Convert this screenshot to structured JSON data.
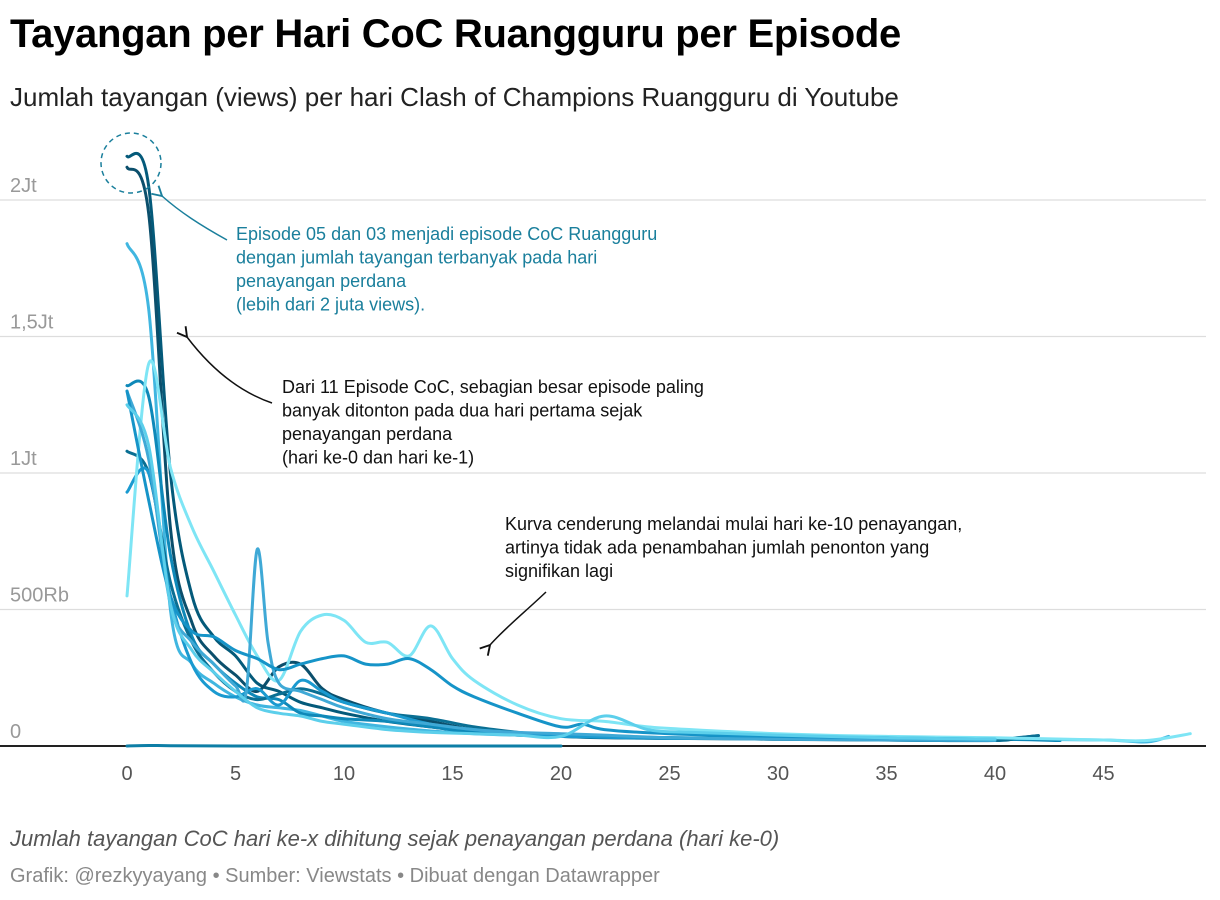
{
  "title": "Tayangan per Hari CoC Ruangguru per Episode",
  "subtitle": "Jumlah tayangan (views) per hari Clash of Champions Ruangguru di Youtube",
  "footnote": "Jumlah tayangan CoC hari ke-x dihitung sejak penayangan perdana (hari ke-0)",
  "credit": "Grafik: @rezkyyayang • Sumber: Viewstats • Dibuat dengan Datawrapper",
  "colors": {
    "grid": "#dddddd",
    "axis": "#222222",
    "annot_blue": "#1a7f9c",
    "annot_dark": "#111111"
  },
  "annotations": [
    {
      "id": "a1",
      "color": "#1a7f9c",
      "lines": [
        "Episode 05 dan 03 menjadi episode CoC Ruangguru",
        "dengan jumlah tayangan terbanyak pada hari",
        "penayangan perdana",
        "(lebih dari 2 juta views)."
      ]
    },
    {
      "id": "a2",
      "color": "#111111",
      "lines": [
        "Dari 11 Episode CoC, sebagian besar episode paling",
        "banyak ditonton pada dua hari pertama sejak",
        "penayangan perdana",
        "(hari ke-0 dan hari ke-1)"
      ]
    },
    {
      "id": "a3",
      "color": "#111111",
      "lines": [
        "Kurva cenderung melandai mulai hari ke-10 penayangan,",
        "artinya tidak ada penambahan jumlah penonton yang",
        "signifikan lagi"
      ]
    }
  ],
  "chart_data": {
    "type": "line",
    "title": "Tayangan per Hari CoC Ruangguru per Episode",
    "subtitle": "Jumlah tayangan (views) per hari Clash of Champions Ruangguru di Youtube",
    "xlabel": "",
    "ylabel": "",
    "xlim": [
      0,
      49
    ],
    "ylim": [
      0,
      2000000
    ],
    "xticks": [
      0,
      5,
      10,
      15,
      20,
      25,
      30,
      35,
      40,
      45
    ],
    "xtick_labels": [
      "0",
      "5",
      "10",
      "15",
      "20",
      "25",
      "30",
      "35",
      "40",
      "45"
    ],
    "yticks": [
      0,
      500000,
      1000000,
      1500000,
      2000000
    ],
    "ytick_labels": [
      "0",
      "500Rb",
      "1Jt",
      "1,5Jt",
      "2Jt"
    ],
    "grid": true,
    "series": [
      {
        "color": "#045a7a",
        "points": [
          [
            0,
            2160000
          ],
          [
            1,
            2050000
          ],
          [
            2,
            1000000
          ],
          [
            3,
            550000
          ],
          [
            4,
            400000
          ],
          [
            5,
            330000
          ],
          [
            6,
            230000
          ],
          [
            7,
            200000
          ],
          [
            8,
            160000
          ],
          [
            9,
            140000
          ],
          [
            10,
            120000
          ],
          [
            12,
            90000
          ],
          [
            14,
            70000
          ],
          [
            16,
            50000
          ],
          [
            18,
            40000
          ],
          [
            20,
            35000
          ],
          [
            22,
            30000
          ],
          [
            25,
            28000
          ],
          [
            28,
            27000
          ],
          [
            30,
            24000
          ],
          [
            33,
            23000
          ],
          [
            36,
            21000
          ],
          [
            38,
            20000
          ],
          [
            40,
            22000
          ],
          [
            42,
            38000
          ]
        ]
      },
      {
        "color": "#0b4f6c",
        "points": [
          [
            0,
            2120000
          ],
          [
            1,
            1950000
          ],
          [
            2,
            800000
          ],
          [
            3,
            450000
          ],
          [
            4,
            330000
          ],
          [
            5,
            260000
          ],
          [
            6,
            200000
          ],
          [
            7,
            290000
          ],
          [
            8,
            300000
          ],
          [
            9,
            210000
          ],
          [
            10,
            170000
          ],
          [
            12,
            120000
          ],
          [
            14,
            90000
          ],
          [
            16,
            60000
          ],
          [
            18,
            45000
          ],
          [
            20,
            40000
          ],
          [
            25,
            30000
          ],
          [
            28,
            30000
          ],
          [
            30,
            26000
          ],
          [
            35,
            25000
          ],
          [
            40,
            22000
          ]
        ]
      },
      {
        "color": "#40b6e0",
        "points": [
          [
            0,
            1840000
          ],
          [
            1,
            1600000
          ],
          [
            2,
            500000
          ],
          [
            3,
            300000
          ],
          [
            4,
            230000
          ],
          [
            5,
            180000
          ],
          [
            6,
            150000
          ],
          [
            7,
            140000
          ],
          [
            8,
            130000
          ],
          [
            9,
            110000
          ],
          [
            10,
            90000
          ],
          [
            12,
            70000
          ],
          [
            14,
            55000
          ],
          [
            16,
            45000
          ],
          [
            18,
            40000
          ],
          [
            20,
            38000
          ],
          [
            25,
            30000
          ],
          [
            30,
            28000
          ],
          [
            35,
            25000
          ],
          [
            40,
            25000
          ],
          [
            45,
            22000
          ],
          [
            47,
            15000
          ],
          [
            48,
            35000
          ]
        ]
      },
      {
        "color": "#0e88b8",
        "points": [
          [
            0,
            1320000
          ],
          [
            1,
            1280000
          ],
          [
            2,
            700000
          ],
          [
            3,
            400000
          ],
          [
            4,
            300000
          ],
          [
            5,
            230000
          ],
          [
            6,
            180000
          ],
          [
            7,
            170000
          ],
          [
            8,
            120000
          ],
          [
            9,
            110000
          ],
          [
            10,
            100000
          ],
          [
            12,
            90000
          ],
          [
            14,
            70000
          ],
          [
            16,
            50000
          ],
          [
            18,
            40000
          ],
          [
            20,
            35000
          ],
          [
            25,
            30000
          ],
          [
            30,
            28000
          ],
          [
            35,
            27000
          ],
          [
            40,
            25000
          ],
          [
            43,
            20000
          ]
        ]
      },
      {
        "color": "#0a6f93",
        "points": [
          [
            0,
            1080000
          ],
          [
            1,
            1000000
          ],
          [
            2,
            600000
          ],
          [
            3,
            380000
          ],
          [
            4,
            270000
          ],
          [
            5,
            200000
          ],
          [
            6,
            170000
          ],
          [
            7,
            190000
          ],
          [
            8,
            210000
          ],
          [
            9,
            190000
          ],
          [
            10,
            160000
          ],
          [
            12,
            120000
          ],
          [
            14,
            100000
          ],
          [
            16,
            70000
          ],
          [
            18,
            50000
          ],
          [
            20,
            35000
          ],
          [
            25,
            28000
          ],
          [
            30,
            26000
          ],
          [
            35,
            22000
          ],
          [
            40,
            20000
          ],
          [
            41,
            30000
          ],
          [
            42,
            38000
          ]
        ]
      },
      {
        "color": "#1a9ad0",
        "points": [
          [
            0,
            930000
          ],
          [
            1,
            1000000
          ],
          [
            2,
            550000
          ],
          [
            3,
            300000
          ],
          [
            4,
            200000
          ],
          [
            5,
            180000
          ],
          [
            6,
            210000
          ],
          [
            7,
            150000
          ],
          [
            8,
            240000
          ],
          [
            9,
            200000
          ],
          [
            10,
            160000
          ],
          [
            12,
            120000
          ],
          [
            14,
            80000
          ],
          [
            16,
            60000
          ],
          [
            18,
            45000
          ],
          [
            20,
            35000
          ],
          [
            25,
            28000
          ],
          [
            30,
            28000
          ],
          [
            35,
            25000
          ],
          [
            40,
            22000
          ]
        ]
      },
      {
        "color": "#7ee5f5",
        "points": [
          [
            0,
            550000
          ],
          [
            1,
            1400000
          ],
          [
            2,
            1020000
          ],
          [
            3,
            800000
          ],
          [
            4,
            640000
          ],
          [
            5,
            480000
          ],
          [
            6,
            330000
          ],
          [
            7,
            240000
          ],
          [
            8,
            420000
          ],
          [
            9,
            480000
          ],
          [
            10,
            460000
          ],
          [
            11,
            380000
          ],
          [
            12,
            380000
          ],
          [
            13,
            330000
          ],
          [
            14,
            440000
          ],
          [
            15,
            320000
          ],
          [
            16,
            240000
          ],
          [
            18,
            150000
          ],
          [
            20,
            100000
          ],
          [
            22,
            90000
          ],
          [
            24,
            70000
          ],
          [
            26,
            60000
          ],
          [
            30,
            45000
          ],
          [
            35,
            35000
          ],
          [
            40,
            30000
          ],
          [
            45,
            22000
          ],
          [
            47,
            20000
          ],
          [
            49,
            45000
          ]
        ]
      },
      {
        "color": "#3fa9d6",
        "points": [
          [
            0,
            1300000
          ],
          [
            1,
            1050000
          ],
          [
            2,
            520000
          ],
          [
            3,
            380000
          ],
          [
            4,
            300000
          ],
          [
            5,
            220000
          ],
          [
            5.5,
            200000
          ],
          [
            6,
            720000
          ],
          [
            6.5,
            380000
          ],
          [
            7,
            230000
          ],
          [
            8,
            200000
          ],
          [
            9,
            170000
          ],
          [
            10,
            140000
          ],
          [
            12,
            100000
          ],
          [
            14,
            80000
          ],
          [
            16,
            60000
          ],
          [
            18,
            50000
          ],
          [
            20,
            45000
          ],
          [
            22,
            40000
          ],
          [
            25,
            30000
          ],
          [
            30,
            25000
          ],
          [
            35,
            22000
          ],
          [
            40,
            20000
          ]
        ]
      },
      {
        "color": "#1694c8",
        "points": [
          [
            0,
            1300000
          ],
          [
            1,
            900000
          ],
          [
            2,
            550000
          ],
          [
            3,
            420000
          ],
          [
            4,
            400000
          ],
          [
            5,
            350000
          ],
          [
            6,
            320000
          ],
          [
            7,
            280000
          ],
          [
            8,
            300000
          ],
          [
            9,
            320000
          ],
          [
            10,
            330000
          ],
          [
            11,
            300000
          ],
          [
            12,
            300000
          ],
          [
            13,
            320000
          ],
          [
            14,
            280000
          ],
          [
            15,
            220000
          ],
          [
            16,
            180000
          ],
          [
            18,
            120000
          ],
          [
            20,
            70000
          ],
          [
            21,
            80000
          ],
          [
            22,
            60000
          ],
          [
            25,
            45000
          ],
          [
            30,
            35000
          ],
          [
            35,
            30000
          ],
          [
            40,
            25000
          ]
        ]
      },
      {
        "color": "#5ccfeb",
        "points": [
          [
            0,
            1250000
          ],
          [
            1,
            1100000
          ],
          [
            2,
            520000
          ],
          [
            3,
            350000
          ],
          [
            4,
            270000
          ],
          [
            5,
            200000
          ],
          [
            6,
            140000
          ],
          [
            7,
            120000
          ],
          [
            8,
            110000
          ],
          [
            9,
            90000
          ],
          [
            10,
            80000
          ],
          [
            12,
            60000
          ],
          [
            14,
            50000
          ],
          [
            16,
            45000
          ],
          [
            18,
            40000
          ],
          [
            20,
            35000
          ],
          [
            22,
            110000
          ],
          [
            24,
            60000
          ],
          [
            26,
            50000
          ],
          [
            30,
            40000
          ],
          [
            35,
            30000
          ],
          [
            40,
            25000
          ]
        ]
      },
      {
        "color": "#0d7ea6",
        "points": [
          [
            0,
            0
          ],
          [
            1,
            2000
          ],
          [
            2,
            1000
          ],
          [
            5,
            0
          ],
          [
            10,
            0
          ],
          [
            15,
            0
          ],
          [
            20,
            0
          ]
        ]
      }
    ]
  }
}
